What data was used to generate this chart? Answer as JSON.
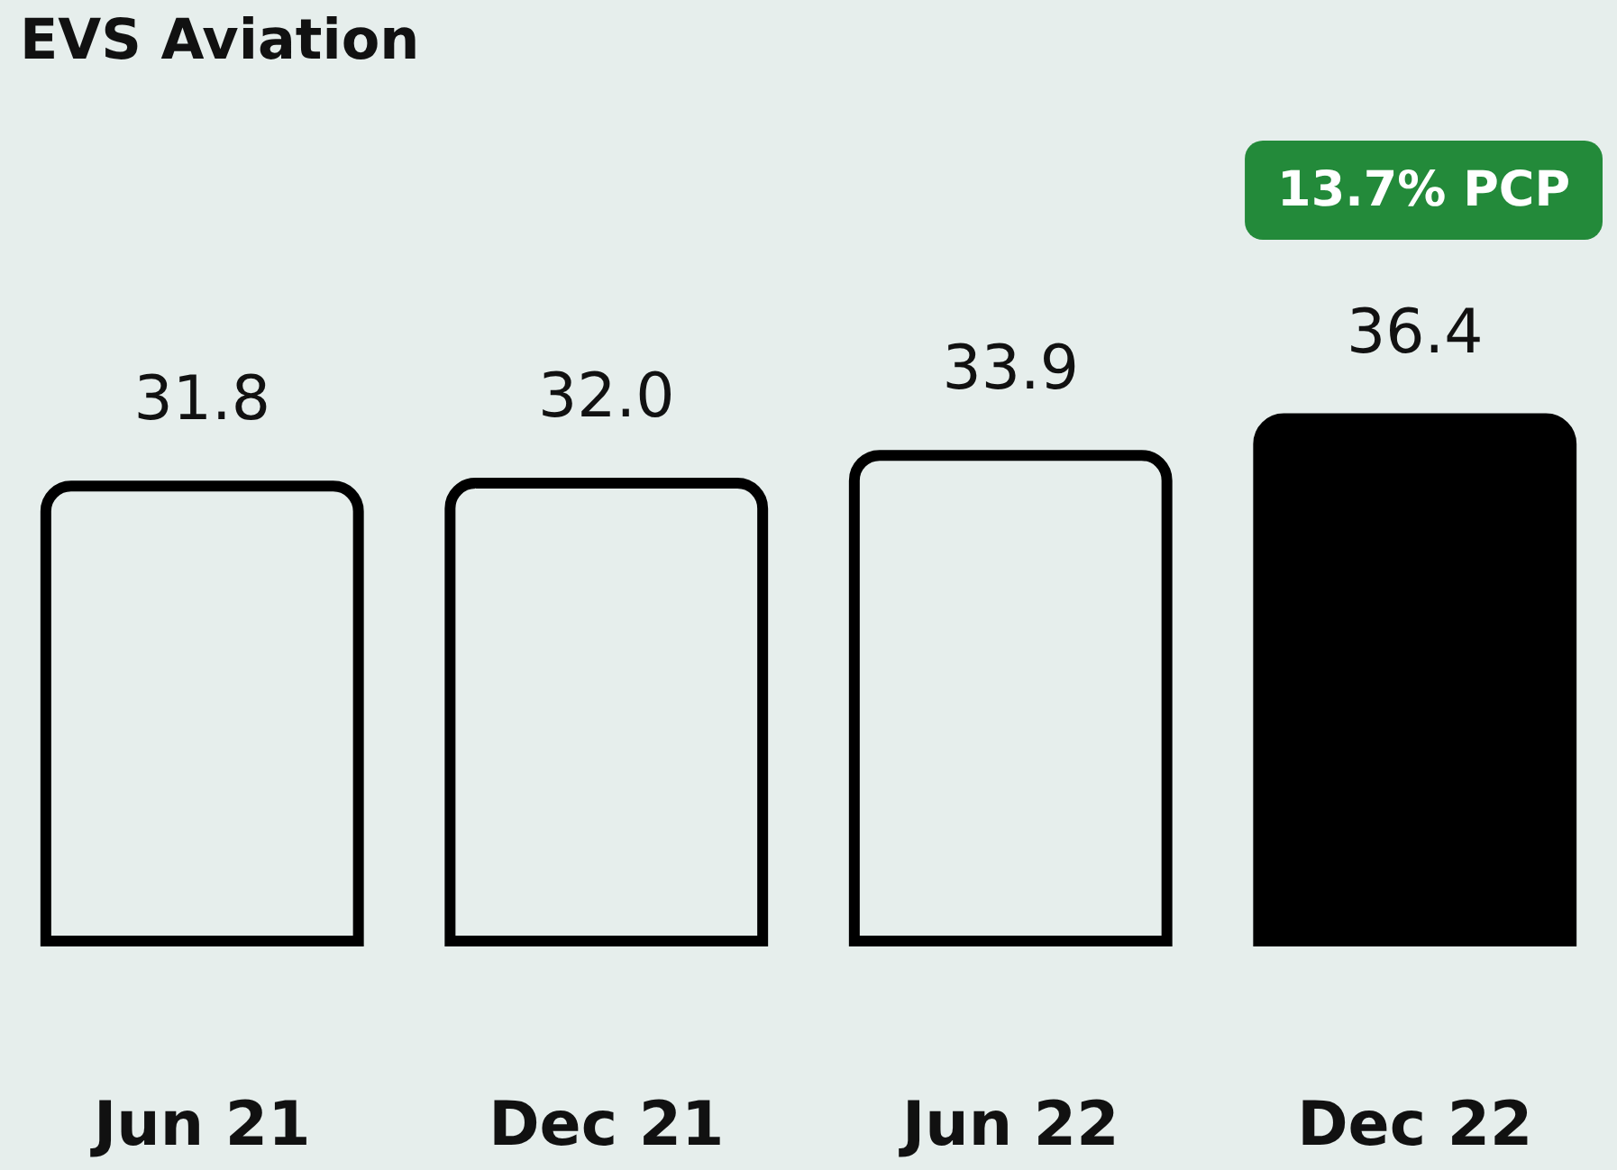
{
  "chart_data": {
    "type": "bar",
    "title": "EVS Aviation",
    "categories": [
      "Jun 21",
      "Dec 21",
      "Jun 22",
      "Dec 22"
    ],
    "values": [
      31.8,
      32.0,
      33.9,
      36.4
    ],
    "value_labels": [
      "31.8",
      "32.0",
      "33.9",
      "36.4"
    ],
    "colors": [
      "#e6eeec",
      "#e6eeec",
      "#e6eeec",
      "#000000"
    ],
    "tick_labels": "x",
    "annotations": [
      "13.7% PCP"
    ]
  }
}
